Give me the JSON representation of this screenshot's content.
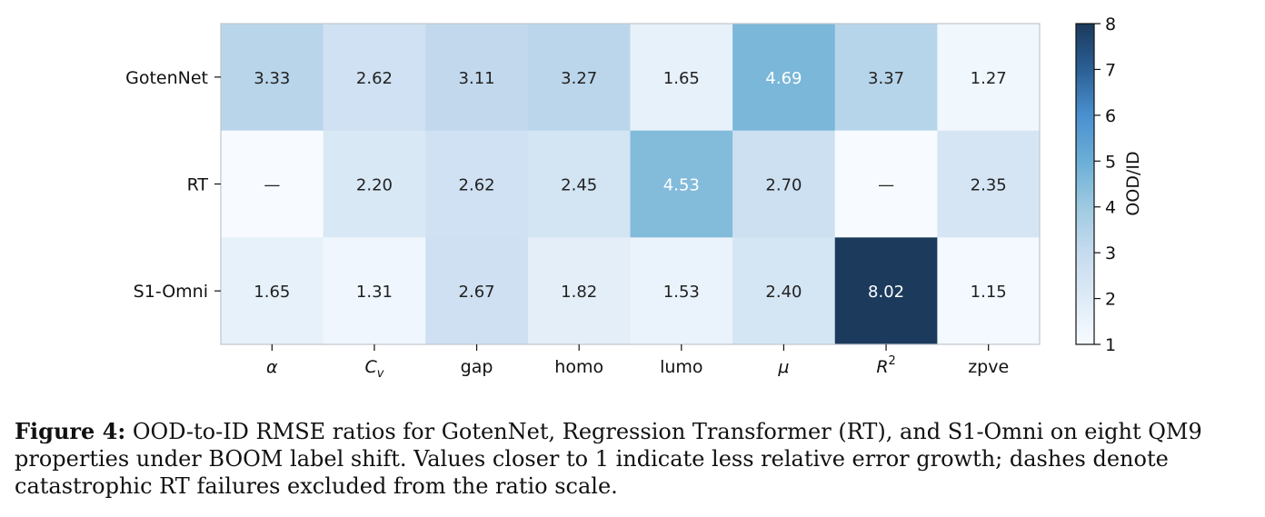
{
  "chart_data": {
    "type": "heatmap",
    "rows": [
      "GotenNet",
      "RT",
      "S1-Omni"
    ],
    "columns": [
      {
        "label": "α",
        "base": "α",
        "italic": true
      },
      {
        "label": "Cv",
        "base": "C",
        "sub": "v",
        "italic": true
      },
      {
        "label": "gap",
        "base": "gap",
        "italic": false
      },
      {
        "label": "homo",
        "base": "homo",
        "italic": false
      },
      {
        "label": "lumo",
        "base": "lumo",
        "italic": false
      },
      {
        "label": "μ",
        "base": "μ",
        "italic": true
      },
      {
        "label": "R2",
        "base": "R",
        "sup": "2",
        "italic": true
      },
      {
        "label": "zpve",
        "base": "zpve",
        "italic": false
      }
    ],
    "values": [
      [
        3.33,
        2.62,
        3.11,
        3.27,
        1.65,
        4.69,
        3.37,
        1.27
      ],
      [
        null,
        2.2,
        2.62,
        2.45,
        4.53,
        2.7,
        null,
        2.35
      ],
      [
        1.65,
        1.31,
        2.67,
        1.82,
        1.53,
        2.4,
        8.02,
        1.15
      ]
    ],
    "cell_labels": [
      [
        "3.33",
        "2.62",
        "3.11",
        "3.27",
        "1.65",
        "4.69",
        "3.37",
        "1.27"
      ],
      [
        "—",
        "2.20",
        "2.62",
        "2.45",
        "4.53",
        "2.70",
        "—",
        "2.35"
      ],
      [
        "1.65",
        "1.31",
        "2.67",
        "1.82",
        "1.53",
        "2.40",
        "8.02",
        "1.15"
      ]
    ],
    "missing_label": "—",
    "colorbar": {
      "label": "OOD/ID",
      "range": [
        1,
        8
      ],
      "ticks": [
        1,
        2,
        3,
        4,
        5,
        6,
        7,
        8
      ],
      "colormap": "Blues",
      "colors": [
        "#f7fbff",
        "#deebf7",
        "#c6dbef",
        "#9ecae1",
        "#6baed6",
        "#4a90d0",
        "#2b5f95",
        "#1b3a5c"
      ]
    },
    "grid": false,
    "legend": "colorbar-right"
  },
  "caption": {
    "label": "Figure 4:",
    "text": " OOD-to-ID RMSE ratios for GotenNet, Regression Transformer (RT), and S1-Omni on eight QM9 properties under BOOM label shift. Values closer to 1 indicate less relative error growth; dashes denote catastrophic RT failures excluded from the ratio scale."
  }
}
